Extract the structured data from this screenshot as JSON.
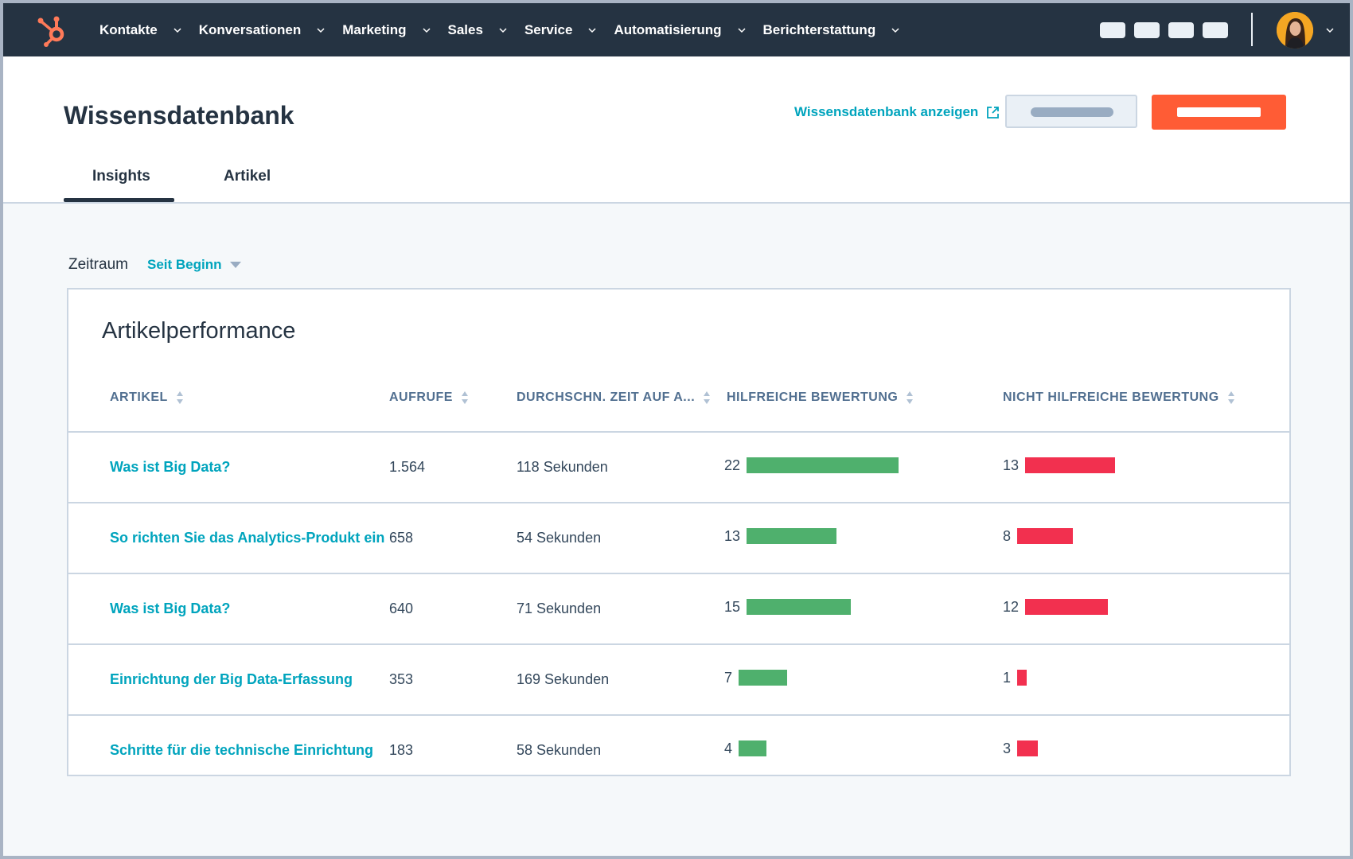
{
  "nav": {
    "items": [
      "Kontakte",
      "Konversationen",
      "Marketing",
      "Sales",
      "Service",
      "Automatisierung",
      "Berichterstattung"
    ]
  },
  "colors": {
    "nav_bg": "#253342",
    "accent": "#00a4bd",
    "primary": "#ff5c35",
    "helpful": "#4fb06d",
    "not_helpful": "#f2304f"
  },
  "header": {
    "title": "Wissensdatenbank",
    "view_link": "Wissensdatenbank anzeigen",
    "tabs": [
      "Insights",
      "Artikel"
    ],
    "active_tab": "Insights"
  },
  "filter": {
    "label": "Zeitraum",
    "value": "Seit Beginn"
  },
  "card": {
    "title": "Artikelperformance",
    "columns": [
      "ARTIKEL",
      "AUFRUFE",
      "DURCHSCHN. ZEIT AUF A...",
      "HILFREICHE BEWERTUNG",
      "NICHT HILFREICHE BEWERTUNG"
    ],
    "rows": [
      {
        "title": "Was ist Big Data?",
        "views": "1.564",
        "time": "118 Sekunden",
        "helpful": 22,
        "not_helpful": 13
      },
      {
        "title": "So richten Sie das Analytics-Produkt ein",
        "views": "658",
        "time": "54 Sekunden",
        "helpful": 13,
        "not_helpful": 8
      },
      {
        "title": "Was ist Big Data?",
        "views": "640",
        "time": "71 Sekunden",
        "helpful": 15,
        "not_helpful": 12
      },
      {
        "title": "Einrichtung der Big Data-Erfassung",
        "views": "353",
        "time": "169 Sekunden",
        "helpful": 7,
        "not_helpful": 1
      },
      {
        "title": "Schritte für die technische Einrichtung",
        "views": "183",
        "time": "58 Sekunden",
        "helpful": 4,
        "not_helpful": 3
      }
    ]
  }
}
